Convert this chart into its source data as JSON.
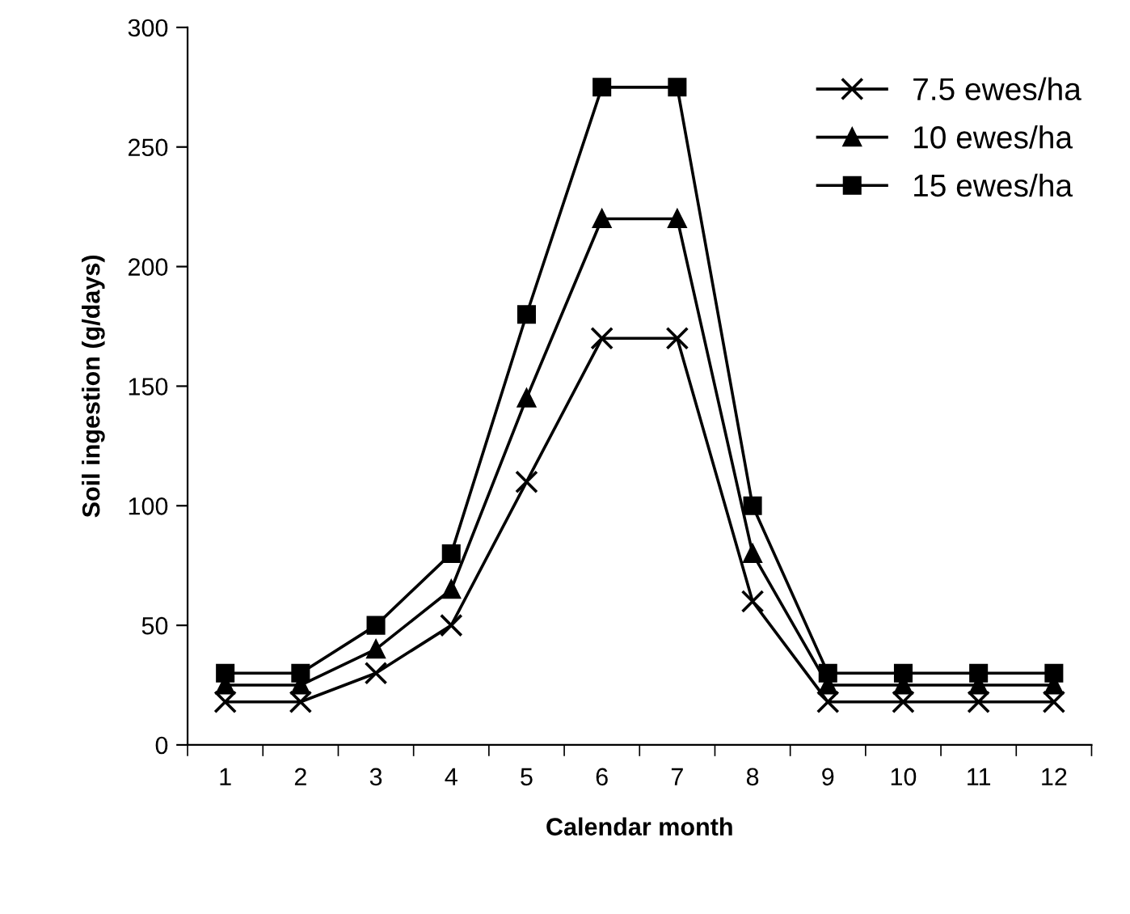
{
  "chart_data": {
    "type": "line",
    "xlabel": "Calendar month",
    "ylabel": "Soil ingestion (g/days)",
    "categories": [
      "1",
      "2",
      "3",
      "4",
      "5",
      "6",
      "7",
      "8",
      "9",
      "10",
      "11",
      "12"
    ],
    "ylim": [
      0,
      300
    ],
    "yticks": [
      0,
      50,
      100,
      150,
      200,
      250,
      300
    ],
    "grid": false,
    "legend": "top right",
    "line_style": "solid",
    "series": [
      {
        "name": "7.5 ewes/ha",
        "color": "#000000",
        "marker": "cross",
        "values": [
          18,
          18,
          30,
          50,
          110,
          170,
          170,
          60,
          18,
          18,
          18,
          18
        ]
      },
      {
        "name": "10 ewes/ha",
        "color": "#000000",
        "marker": "triangle",
        "values": [
          25,
          25,
          40,
          65,
          145,
          220,
          220,
          80,
          25,
          25,
          25,
          25
        ]
      },
      {
        "name": "15 ewes/ha",
        "color": "#000000",
        "marker": "square",
        "values": [
          30,
          30,
          50,
          80,
          180,
          275,
          275,
          100,
          30,
          30,
          30,
          30
        ]
      }
    ]
  }
}
